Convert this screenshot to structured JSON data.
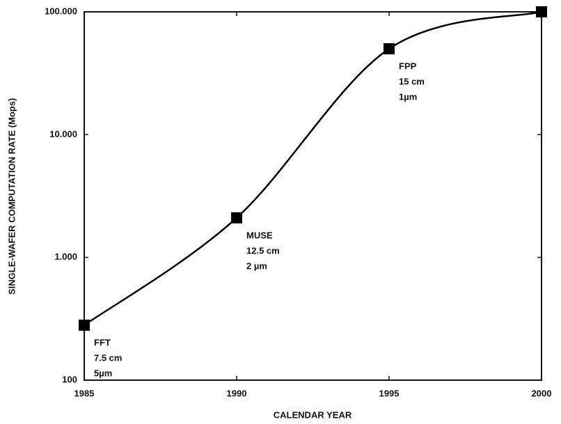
{
  "chart_data": {
    "type": "line",
    "x_label": "CALENDAR YEAR",
    "y_label": "SINGLE-WAFER COMPUTATION RATE (Mops)",
    "x": [
      1985,
      1990,
      1995,
      2000
    ],
    "series": [
      {
        "color": "#000000",
        "values": [
          280,
          2100,
          50000,
          100000
        ]
      }
    ],
    "point_labels": [
      [
        "FFT",
        "7.5 cm",
        "5µm"
      ],
      [
        "MUSE",
        "12.5 cm",
        "2 µm"
      ],
      [
        "FPP",
        "15 cm",
        "1µm"
      ]
    ],
    "xlim": [
      1985,
      2000
    ],
    "xticks": [
      1985,
      1990,
      1995,
      2000
    ],
    "ylim": [
      100,
      100000
    ],
    "yticks": [
      100,
      {
        "value": 1000,
        "label": "1.000"
      },
      {
        "value": 10000,
        "label": "10.000"
      },
      {
        "value": 100000,
        "label": "100.000"
      }
    ],
    "log_y": true,
    "grid": false
  }
}
